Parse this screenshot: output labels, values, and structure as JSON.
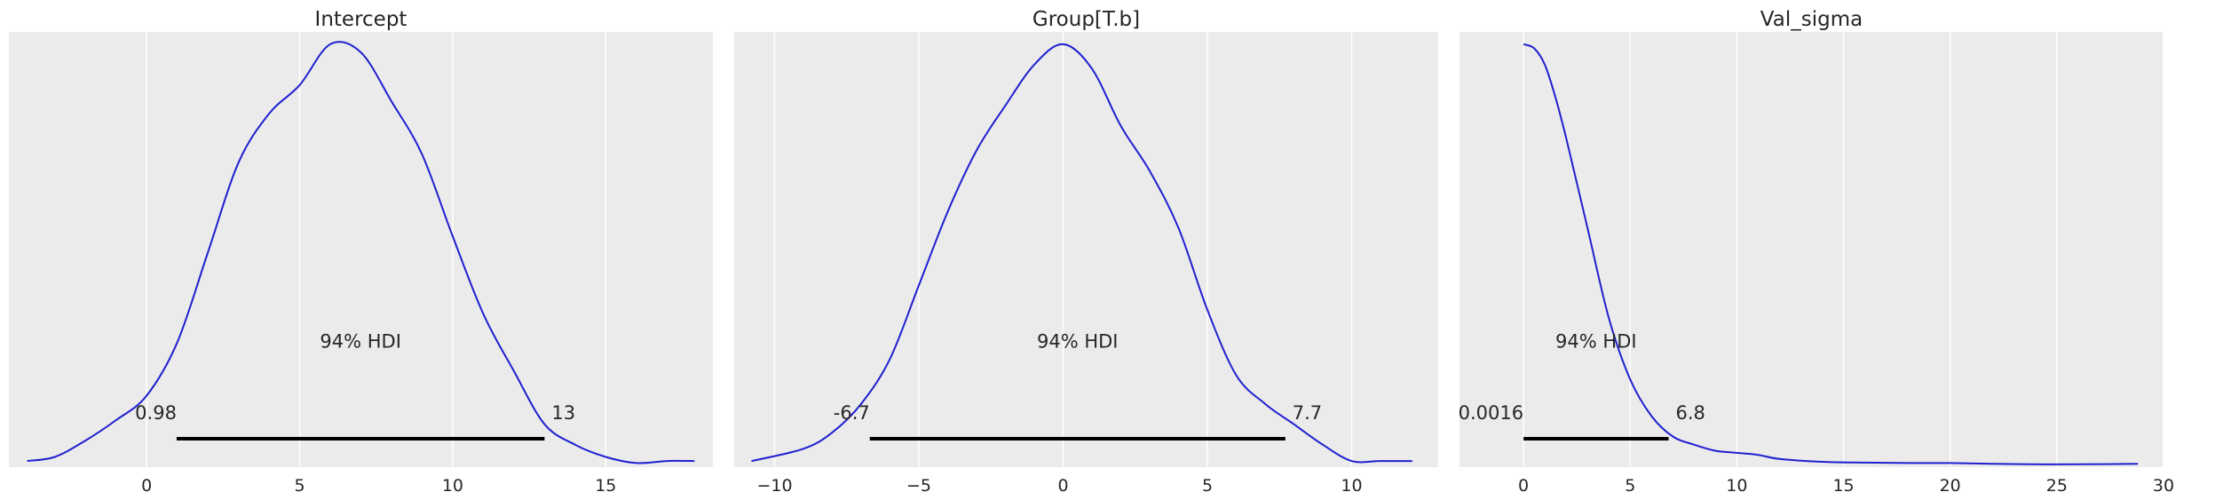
{
  "chart_data": [
    {
      "type": "line",
      "title": "Intercept",
      "xlabel": "",
      "ylabel": "",
      "xlim": [
        -4.5,
        18.5
      ],
      "ylim": [
        -0.005,
        1.06
      ],
      "xticks": [
        0,
        5,
        10,
        15
      ],
      "xtick_labels": [
        "0",
        "5",
        "10",
        "15"
      ],
      "grid": true,
      "line_color": "#1f1fd0",
      "density": {
        "x": [
          -3.9,
          -3,
          -2,
          -1,
          0,
          1,
          2,
          3,
          4,
          5,
          6,
          7,
          8,
          9,
          10,
          11,
          12,
          13,
          14,
          15,
          16,
          17,
          17.9
        ],
        "y": [
          0.01,
          0.02,
          0.06,
          0.11,
          0.17,
          0.3,
          0.52,
          0.74,
          0.86,
          0.93,
          1.03,
          1.01,
          0.89,
          0.76,
          0.56,
          0.37,
          0.23,
          0.1,
          0.05,
          0.02,
          0.005,
          0.01,
          0.01
        ]
      },
      "hdi": {
        "prob_label": "94% HDI",
        "low": 0.98,
        "high": 13.0,
        "low_label": "0.98",
        "high_label": "13"
      }
    },
    {
      "type": "line",
      "title": "Group[T.b]",
      "xlabel": "",
      "ylabel": "",
      "xlim": [
        -11.4,
        13.0
      ],
      "ylim": [
        -0.005,
        1.06
      ],
      "xticks": [
        -10,
        -5,
        0,
        5,
        10
      ],
      "xtick_labels": [
        "−10",
        "−5",
        "0",
        "5",
        "10"
      ],
      "grid": true,
      "line_color": "#1f1fd0",
      "density": {
        "x": [
          -10.8,
          -9,
          -8,
          -7,
          -6,
          -5,
          -4,
          -3,
          -2,
          -1,
          0,
          1,
          2,
          3,
          4,
          5,
          6,
          7,
          8,
          9,
          10,
          11,
          12.1
        ],
        "y": [
          0.01,
          0.04,
          0.08,
          0.15,
          0.26,
          0.44,
          0.62,
          0.77,
          0.88,
          0.98,
          1.03,
          0.97,
          0.83,
          0.72,
          0.58,
          0.38,
          0.22,
          0.15,
          0.1,
          0.05,
          0.01,
          0.01,
          0.01
        ]
      },
      "hdi": {
        "prob_label": "94% HDI",
        "low": -6.7,
        "high": 7.7,
        "low_label": "-6.7",
        "high_label": "7.7"
      }
    },
    {
      "type": "line",
      "title": "Val_sigma",
      "xlabel": "",
      "ylabel": "",
      "xlim": [
        -3.0,
        30.0
      ],
      "ylim": [
        -0.005,
        1.06
      ],
      "xticks": [
        0,
        5,
        10,
        15,
        20,
        25,
        30
      ],
      "xtick_labels": [
        "0",
        "5",
        "10",
        "15",
        "20",
        "25",
        "30"
      ],
      "grid": true,
      "line_color": "#1f1fd0",
      "density": {
        "x": [
          0,
          0.5,
          1,
          1.5,
          2,
          3,
          4,
          5,
          6,
          7,
          8,
          9,
          10,
          11,
          12,
          14,
          16,
          18,
          20,
          22,
          24,
          26,
          28.8
        ],
        "y": [
          1.03,
          1.02,
          0.98,
          0.9,
          0.8,
          0.58,
          0.36,
          0.21,
          0.12,
          0.07,
          0.05,
          0.035,
          0.03,
          0.025,
          0.015,
          0.008,
          0.006,
          0.005,
          0.005,
          0.003,
          0.002,
          0.002,
          0.003
        ]
      },
      "hdi": {
        "prob_label": "94% HDI",
        "low": 0.0016,
        "high": 6.8,
        "low_label": "0.0016",
        "high_label": "6.8"
      }
    }
  ]
}
